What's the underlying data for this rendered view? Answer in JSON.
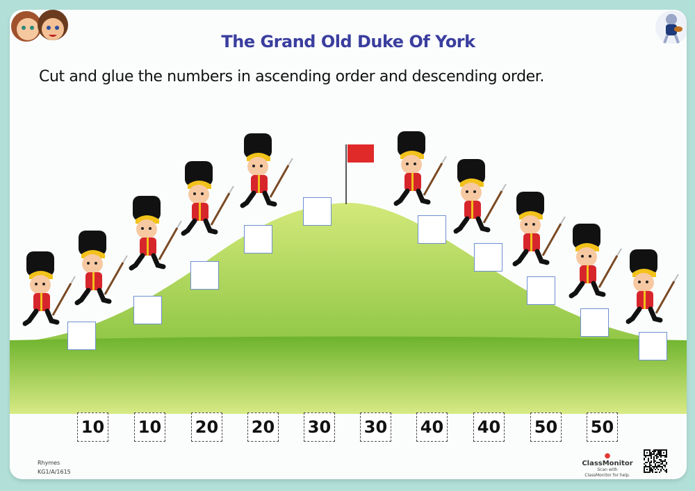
{
  "header": {
    "title": "The Grand Old Duke Of York",
    "instruction": "Cut and glue the numbers in ascending order and descending order."
  },
  "cutouts": [
    "10",
    "10",
    "20",
    "20",
    "30",
    "30",
    "40",
    "40",
    "50",
    "50"
  ],
  "footer": {
    "category": "Rhymes",
    "code": "KG1/A/1615",
    "brand": "ClassMonitor",
    "scan_line1": "Scan with",
    "scan_line2": "ClassMonitor for help."
  },
  "colors": {
    "background": "#b2e0d8",
    "title": "#3a3e9e",
    "grass": "#8cc63f",
    "coat": "#d7262b",
    "flag": "#e02a2a",
    "box_border": "#6d8fd0"
  },
  "icons": [
    "kids-avatar-icon",
    "cat-fiddle-icon",
    "flag-icon",
    "soldier-icon",
    "classmonitor-logo-icon",
    "qr-code-icon"
  ]
}
